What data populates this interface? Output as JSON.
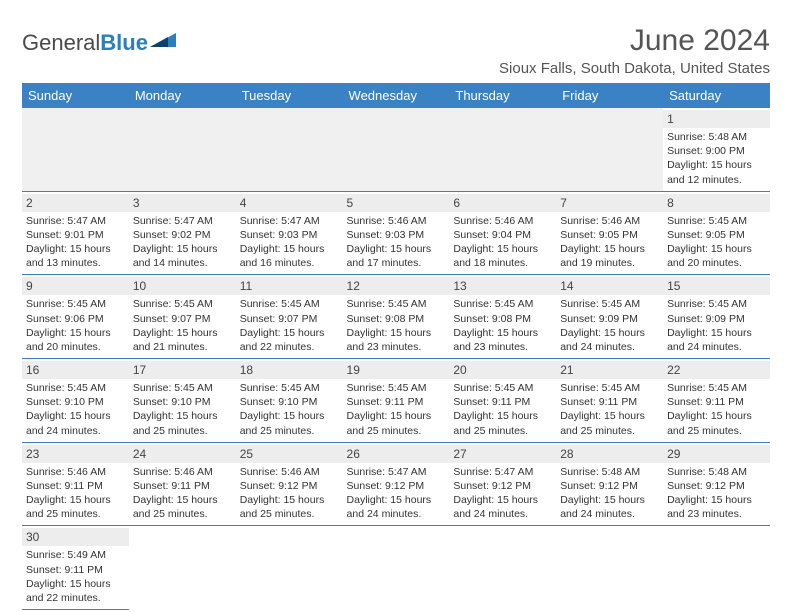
{
  "logo": {
    "word1": "General",
    "word2": "Blue"
  },
  "title": "June 2024",
  "subtitle": "Sioux Falls, South Dakota, United States",
  "colors": {
    "header_bg": "#3b82c4",
    "header_text": "#ffffff",
    "daynum_bg": "#ededed",
    "grid_line": "#3b82c4",
    "logo_blue": "#2a7fbf",
    "text": "#333333",
    "background": "#ffffff"
  },
  "calendar": {
    "weekdays": [
      "Sunday",
      "Monday",
      "Tuesday",
      "Wednesday",
      "Thursday",
      "Friday",
      "Saturday"
    ],
    "font_sizes": {
      "title": 30,
      "subtitle": 15,
      "weekday": 13,
      "daynum": 12,
      "detail": 10.5
    },
    "weeks": [
      [
        null,
        null,
        null,
        null,
        null,
        null,
        {
          "day": "1",
          "sunrise": "Sunrise: 5:48 AM",
          "sunset": "Sunset: 9:00 PM",
          "daylight1": "Daylight: 15 hours",
          "daylight2": "and 12 minutes."
        }
      ],
      [
        {
          "day": "2",
          "sunrise": "Sunrise: 5:47 AM",
          "sunset": "Sunset: 9:01 PM",
          "daylight1": "Daylight: 15 hours",
          "daylight2": "and 13 minutes."
        },
        {
          "day": "3",
          "sunrise": "Sunrise: 5:47 AM",
          "sunset": "Sunset: 9:02 PM",
          "daylight1": "Daylight: 15 hours",
          "daylight2": "and 14 minutes."
        },
        {
          "day": "4",
          "sunrise": "Sunrise: 5:47 AM",
          "sunset": "Sunset: 9:03 PM",
          "daylight1": "Daylight: 15 hours",
          "daylight2": "and 16 minutes."
        },
        {
          "day": "5",
          "sunrise": "Sunrise: 5:46 AM",
          "sunset": "Sunset: 9:03 PM",
          "daylight1": "Daylight: 15 hours",
          "daylight2": "and 17 minutes."
        },
        {
          "day": "6",
          "sunrise": "Sunrise: 5:46 AM",
          "sunset": "Sunset: 9:04 PM",
          "daylight1": "Daylight: 15 hours",
          "daylight2": "and 18 minutes."
        },
        {
          "day": "7",
          "sunrise": "Sunrise: 5:46 AM",
          "sunset": "Sunset: 9:05 PM",
          "daylight1": "Daylight: 15 hours",
          "daylight2": "and 19 minutes."
        },
        {
          "day": "8",
          "sunrise": "Sunrise: 5:45 AM",
          "sunset": "Sunset: 9:05 PM",
          "daylight1": "Daylight: 15 hours",
          "daylight2": "and 20 minutes."
        }
      ],
      [
        {
          "day": "9",
          "sunrise": "Sunrise: 5:45 AM",
          "sunset": "Sunset: 9:06 PM",
          "daylight1": "Daylight: 15 hours",
          "daylight2": "and 20 minutes."
        },
        {
          "day": "10",
          "sunrise": "Sunrise: 5:45 AM",
          "sunset": "Sunset: 9:07 PM",
          "daylight1": "Daylight: 15 hours",
          "daylight2": "and 21 minutes."
        },
        {
          "day": "11",
          "sunrise": "Sunrise: 5:45 AM",
          "sunset": "Sunset: 9:07 PM",
          "daylight1": "Daylight: 15 hours",
          "daylight2": "and 22 minutes."
        },
        {
          "day": "12",
          "sunrise": "Sunrise: 5:45 AM",
          "sunset": "Sunset: 9:08 PM",
          "daylight1": "Daylight: 15 hours",
          "daylight2": "and 23 minutes."
        },
        {
          "day": "13",
          "sunrise": "Sunrise: 5:45 AM",
          "sunset": "Sunset: 9:08 PM",
          "daylight1": "Daylight: 15 hours",
          "daylight2": "and 23 minutes."
        },
        {
          "day": "14",
          "sunrise": "Sunrise: 5:45 AM",
          "sunset": "Sunset: 9:09 PM",
          "daylight1": "Daylight: 15 hours",
          "daylight2": "and 24 minutes."
        },
        {
          "day": "15",
          "sunrise": "Sunrise: 5:45 AM",
          "sunset": "Sunset: 9:09 PM",
          "daylight1": "Daylight: 15 hours",
          "daylight2": "and 24 minutes."
        }
      ],
      [
        {
          "day": "16",
          "sunrise": "Sunrise: 5:45 AM",
          "sunset": "Sunset: 9:10 PM",
          "daylight1": "Daylight: 15 hours",
          "daylight2": "and 24 minutes."
        },
        {
          "day": "17",
          "sunrise": "Sunrise: 5:45 AM",
          "sunset": "Sunset: 9:10 PM",
          "daylight1": "Daylight: 15 hours",
          "daylight2": "and 25 minutes."
        },
        {
          "day": "18",
          "sunrise": "Sunrise: 5:45 AM",
          "sunset": "Sunset: 9:10 PM",
          "daylight1": "Daylight: 15 hours",
          "daylight2": "and 25 minutes."
        },
        {
          "day": "19",
          "sunrise": "Sunrise: 5:45 AM",
          "sunset": "Sunset: 9:11 PM",
          "daylight1": "Daylight: 15 hours",
          "daylight2": "and 25 minutes."
        },
        {
          "day": "20",
          "sunrise": "Sunrise: 5:45 AM",
          "sunset": "Sunset: 9:11 PM",
          "daylight1": "Daylight: 15 hours",
          "daylight2": "and 25 minutes."
        },
        {
          "day": "21",
          "sunrise": "Sunrise: 5:45 AM",
          "sunset": "Sunset: 9:11 PM",
          "daylight1": "Daylight: 15 hours",
          "daylight2": "and 25 minutes."
        },
        {
          "day": "22",
          "sunrise": "Sunrise: 5:45 AM",
          "sunset": "Sunset: 9:11 PM",
          "daylight1": "Daylight: 15 hours",
          "daylight2": "and 25 minutes."
        }
      ],
      [
        {
          "day": "23",
          "sunrise": "Sunrise: 5:46 AM",
          "sunset": "Sunset: 9:11 PM",
          "daylight1": "Daylight: 15 hours",
          "daylight2": "and 25 minutes."
        },
        {
          "day": "24",
          "sunrise": "Sunrise: 5:46 AM",
          "sunset": "Sunset: 9:11 PM",
          "daylight1": "Daylight: 15 hours",
          "daylight2": "and 25 minutes."
        },
        {
          "day": "25",
          "sunrise": "Sunrise: 5:46 AM",
          "sunset": "Sunset: 9:12 PM",
          "daylight1": "Daylight: 15 hours",
          "daylight2": "and 25 minutes."
        },
        {
          "day": "26",
          "sunrise": "Sunrise: 5:47 AM",
          "sunset": "Sunset: 9:12 PM",
          "daylight1": "Daylight: 15 hours",
          "daylight2": "and 24 minutes."
        },
        {
          "day": "27",
          "sunrise": "Sunrise: 5:47 AM",
          "sunset": "Sunset: 9:12 PM",
          "daylight1": "Daylight: 15 hours",
          "daylight2": "and 24 minutes."
        },
        {
          "day": "28",
          "sunrise": "Sunrise: 5:48 AM",
          "sunset": "Sunset: 9:12 PM",
          "daylight1": "Daylight: 15 hours",
          "daylight2": "and 24 minutes."
        },
        {
          "day": "29",
          "sunrise": "Sunrise: 5:48 AM",
          "sunset": "Sunset: 9:12 PM",
          "daylight1": "Daylight: 15 hours",
          "daylight2": "and 23 minutes."
        }
      ],
      [
        {
          "day": "30",
          "sunrise": "Sunrise: 5:49 AM",
          "sunset": "Sunset: 9:11 PM",
          "daylight1": "Daylight: 15 hours",
          "daylight2": "and 22 minutes."
        },
        null,
        null,
        null,
        null,
        null,
        null
      ]
    ]
  }
}
